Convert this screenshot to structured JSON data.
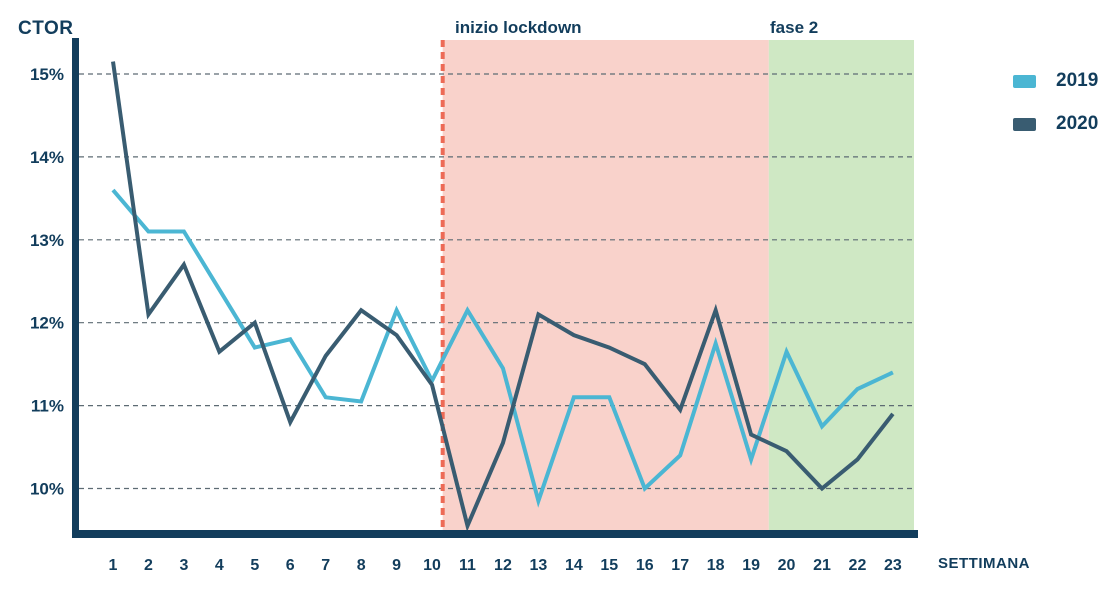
{
  "chart_data": {
    "type": "line",
    "title": "CTOR",
    "y_label": "CTOR",
    "x_label": "SETTIMANA",
    "x": [
      1,
      2,
      3,
      4,
      5,
      6,
      7,
      8,
      9,
      10,
      11,
      12,
      13,
      14,
      15,
      16,
      17,
      18,
      19,
      20,
      21,
      22,
      23
    ],
    "y_ticks": [
      10,
      11,
      12,
      13,
      14,
      15
    ],
    "y_tick_labels": [
      "10%",
      "11%",
      "12%",
      "13%",
      "14%",
      "15%"
    ],
    "ylim": [
      9.45,
      15.4
    ],
    "grid": true,
    "grid_style": "dashed-horizontal",
    "legend_position": "top-right",
    "series": [
      {
        "name": "2019",
        "color": "#4bb6d3",
        "values": [
          13.6,
          13.1,
          13.1,
          12.4,
          11.7,
          11.8,
          11.1,
          11.05,
          12.15,
          11.3,
          12.15,
          11.45,
          9.85,
          11.1,
          11.1,
          10.0,
          10.4,
          11.75,
          10.35,
          11.65,
          10.75,
          11.2,
          11.4
        ]
      },
      {
        "name": "2020",
        "color": "#395c71",
        "values": [
          15.15,
          12.1,
          12.7,
          11.65,
          12.0,
          10.8,
          11.6,
          12.15,
          11.85,
          11.25,
          9.55,
          10.55,
          12.1,
          11.85,
          11.7,
          11.5,
          10.95,
          12.15,
          10.65,
          10.45,
          10.0,
          10.35,
          10.9
        ]
      }
    ],
    "regions": [
      {
        "label": "inizio lockdown",
        "x_from": 10.3,
        "x_to": 19.5,
        "fill": "#f9d2cb"
      },
      {
        "label": "fase 2",
        "x_from": 19.5,
        "x_to": 23.6,
        "fill": "#cfe8c4"
      }
    ],
    "vline": {
      "x": 10.3,
      "color": "#ed6a56",
      "style": "dashed"
    },
    "axis_color": "#123d5c",
    "gridline_color": "#5d6b73",
    "tick_text_color": "#123d5c"
  }
}
